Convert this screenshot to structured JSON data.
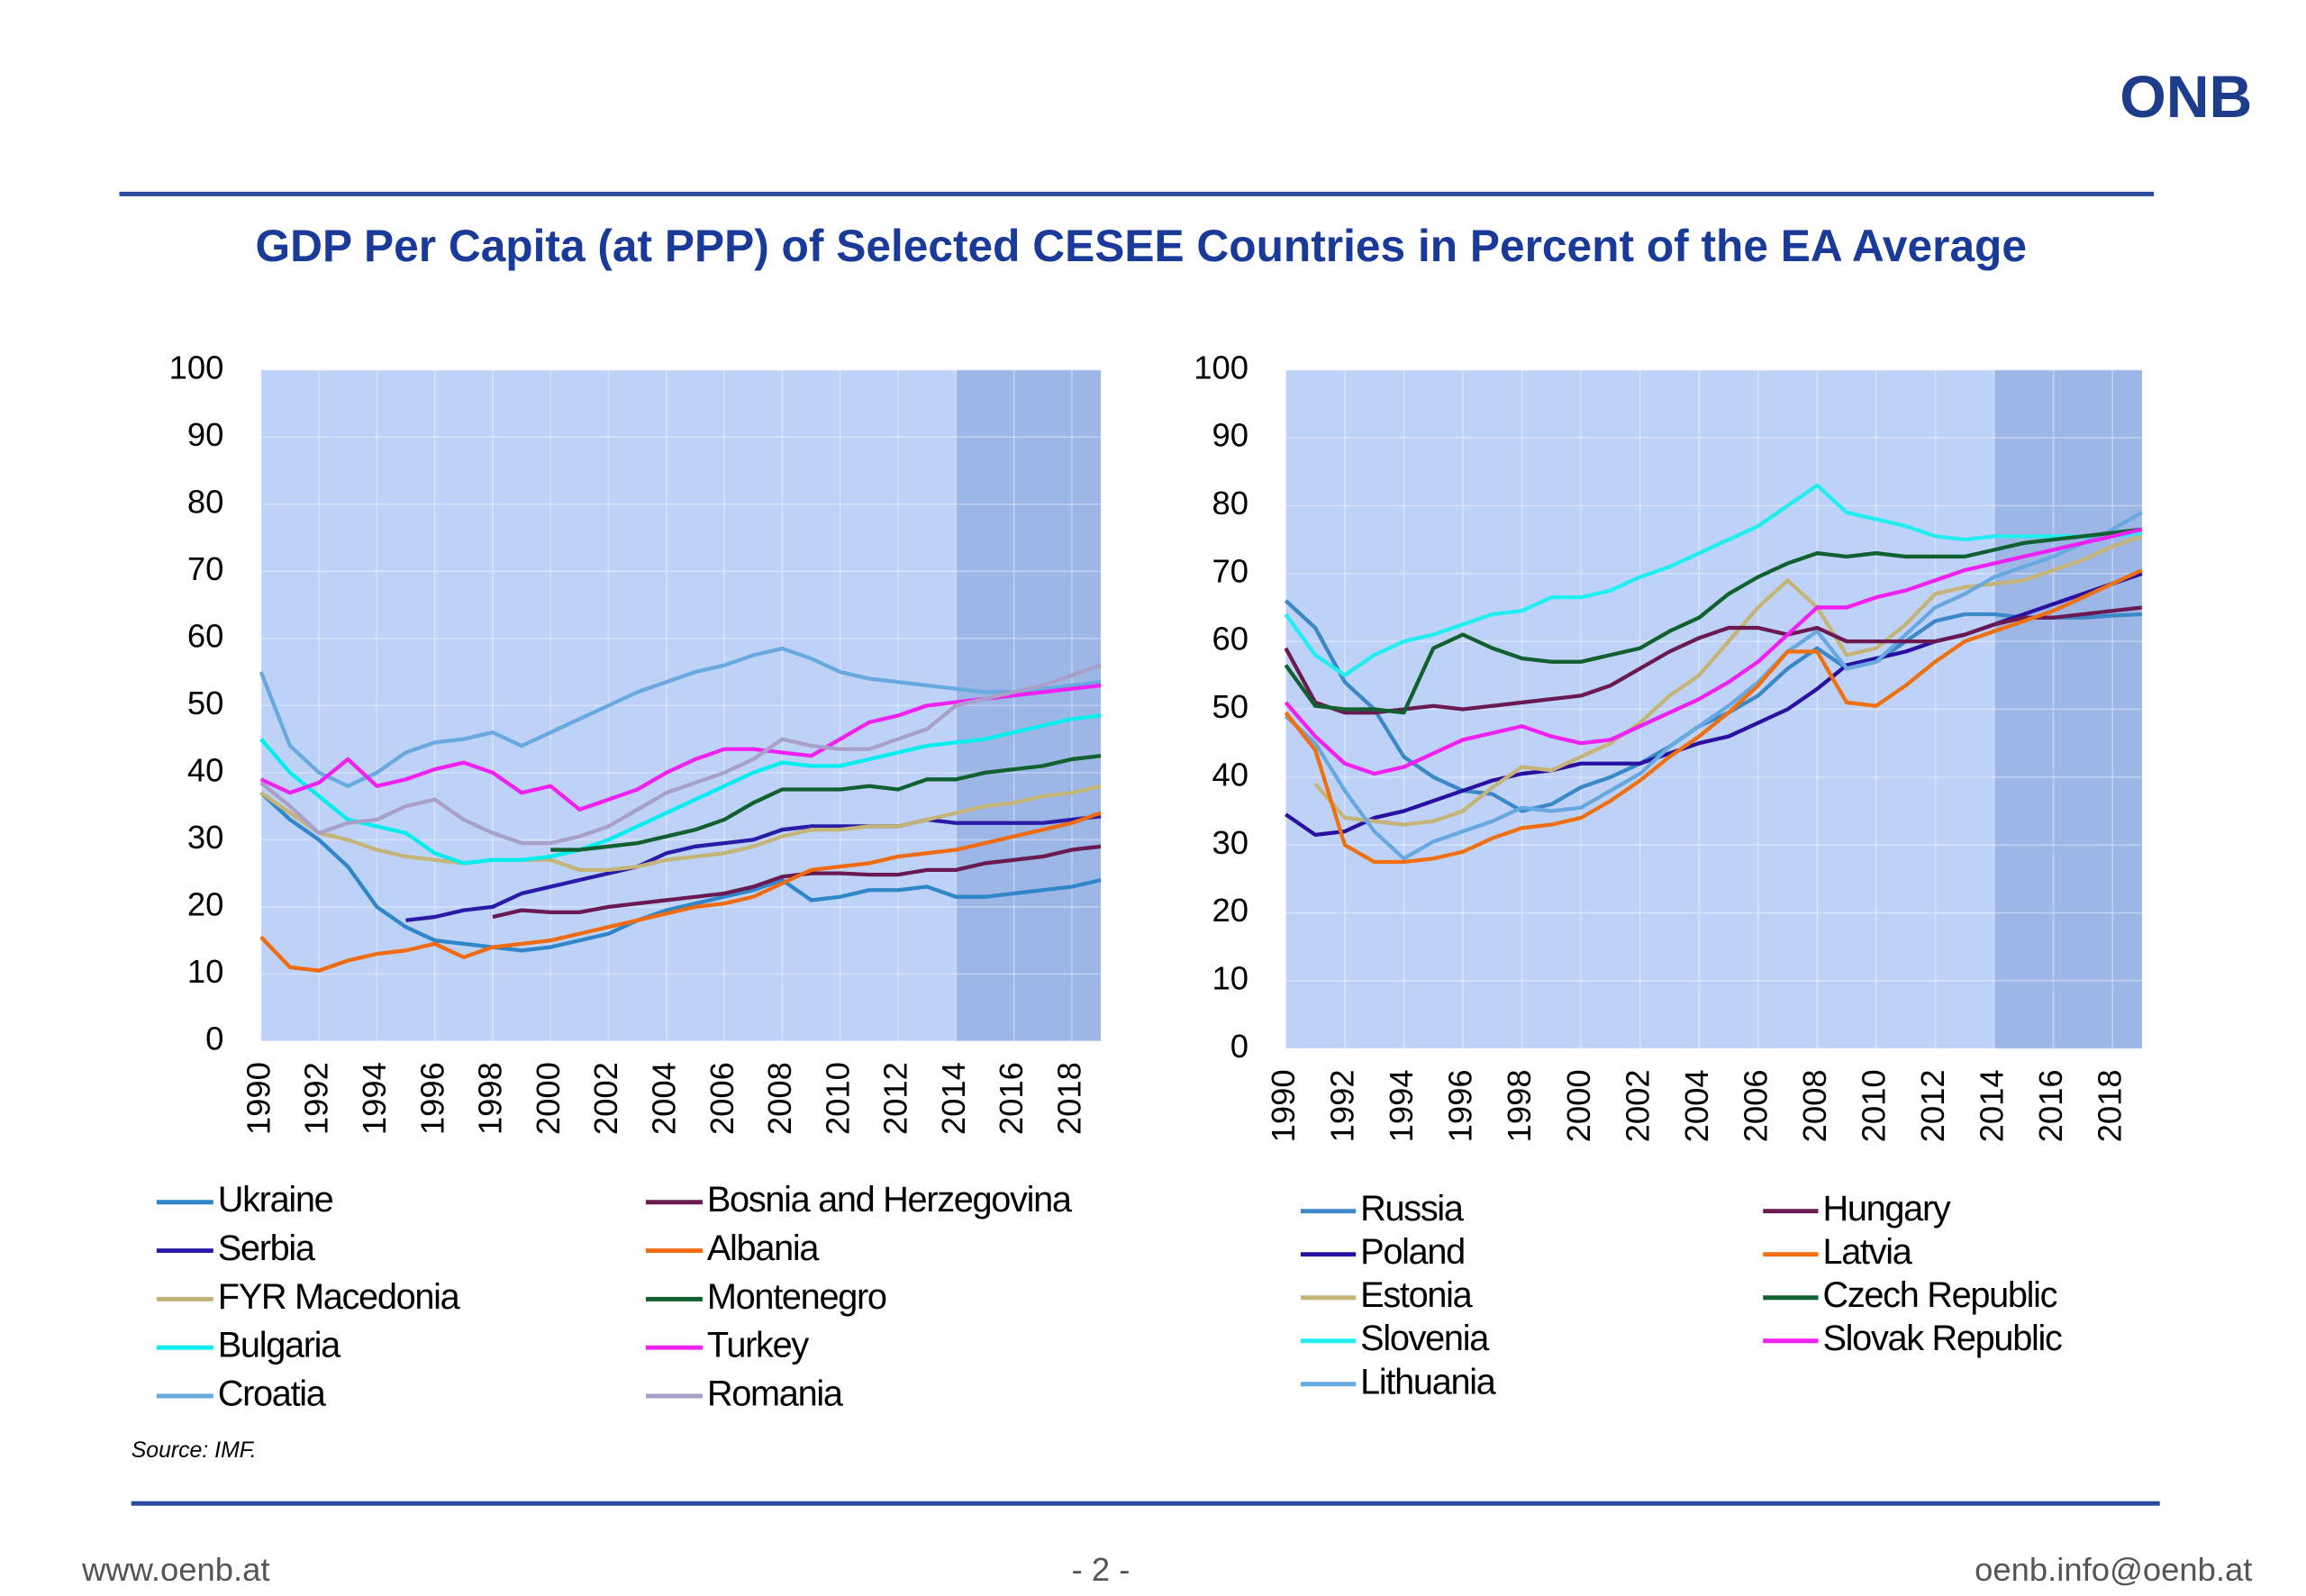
{
  "header": {
    "logo": "ONB",
    "title": "GDP Per Capita (at PPP) of Selected CESEE Countries in Percent of the EA Average"
  },
  "chart_data": [
    {
      "type": "line",
      "legend": "bottom",
      "grid": true,
      "background": "#bed2f7",
      "shading_color": "#9cb6e6",
      "forecast_shading": [
        2014,
        2019
      ],
      "xlim": [
        1990,
        2019
      ],
      "xticks": [
        1990,
        1992,
        1994,
        1996,
        1998,
        2000,
        2002,
        2004,
        2006,
        2008,
        2010,
        2012,
        2014,
        2016,
        2018
      ],
      "ylim": [
        0,
        100
      ],
      "yticks": [
        0,
        10,
        20,
        30,
        40,
        50,
        60,
        70,
        80,
        90,
        100
      ],
      "x": [
        1990,
        1991,
        1992,
        1993,
        1994,
        1995,
        1996,
        1997,
        1998,
        1999,
        2000,
        2001,
        2002,
        2003,
        2004,
        2005,
        2006,
        2007,
        2008,
        2009,
        2010,
        2011,
        2012,
        2013,
        2014,
        2015,
        2016,
        2017,
        2018,
        2019
      ],
      "series": [
        {
          "name": "Ukraine",
          "color": "#2f86c8",
          "values": [
            37,
            33,
            30,
            26,
            20,
            17,
            15,
            14.5,
            14,
            13.5,
            14,
            15,
            16,
            18,
            19.5,
            20.5,
            21.5,
            22.5,
            24,
            21,
            21.5,
            22.5,
            22.5,
            23,
            21.5,
            21.5,
            22,
            22.5,
            23,
            24
          ]
        },
        {
          "name": "Serbia",
          "color": "#2a1aa8",
          "values": [
            null,
            null,
            null,
            null,
            null,
            18,
            18.5,
            19.5,
            20,
            22,
            23,
            24,
            25,
            26,
            28,
            29,
            29.5,
            30,
            31.5,
            32,
            32,
            32,
            32,
            33,
            32.5,
            32.5,
            32.5,
            32.5,
            33,
            33.5
          ]
        },
        {
          "name": "FYR Macedonia",
          "color": "#c4b478",
          "values": [
            37,
            34,
            31,
            30,
            28.5,
            27.5,
            27,
            26.5,
            27,
            27,
            27,
            25.5,
            25.5,
            26,
            27,
            27.5,
            28,
            29,
            30.5,
            31.5,
            31.5,
            32,
            32,
            33,
            34,
            35,
            35.5,
            36.5,
            37,
            38
          ]
        },
        {
          "name": "Bulgaria",
          "color": "#00eef0",
          "values": [
            45,
            40,
            36.5,
            33,
            32,
            31,
            28,
            26.5,
            27,
            27,
            27.5,
            28.5,
            30,
            32,
            34,
            36,
            38,
            40,
            41.5,
            41,
            41,
            42,
            43,
            44,
            44.5,
            45,
            46,
            47,
            48,
            48.5
          ]
        },
        {
          "name": "Croatia",
          "color": "#68aadf",
          "values": [
            55,
            44,
            40,
            38,
            40,
            43,
            44.5,
            45,
            46,
            44,
            46,
            48,
            50,
            52,
            53.5,
            55,
            56,
            57.5,
            58.5,
            57,
            55,
            54,
            53.5,
            53,
            52.5,
            52,
            52,
            52.5,
            53,
            53.5
          ]
        },
        {
          "name": "Bosnia and Herzegovina",
          "color": "#6a1a50",
          "values": [
            null,
            null,
            null,
            null,
            null,
            null,
            null,
            null,
            18.5,
            19.5,
            19.2,
            19.2,
            20,
            20.5,
            21,
            21.5,
            22,
            23,
            24.5,
            25,
            25,
            24.8,
            24.8,
            25.5,
            25.5,
            26.5,
            27,
            27.5,
            28.5,
            29
          ]
        },
        {
          "name": "Albania",
          "color": "#f06a10",
          "values": [
            15.5,
            11,
            10.5,
            12,
            13,
            13.5,
            14.5,
            12.5,
            14,
            14.5,
            15,
            16,
            17,
            18,
            19,
            20,
            20.5,
            21.5,
            23.5,
            25.5,
            26,
            26.5,
            27.5,
            28,
            28.5,
            29.5,
            30.5,
            31.5,
            32.5,
            34
          ]
        },
        {
          "name": "Montenegro",
          "color": "#106030",
          "values": [
            null,
            null,
            null,
            null,
            null,
            null,
            null,
            null,
            null,
            null,
            28.5,
            28.5,
            29,
            29.5,
            30.5,
            31.5,
            33,
            35.5,
            37.5,
            37.5,
            37.5,
            38,
            37.5,
            39,
            39,
            40,
            40.5,
            41,
            42,
            42.5
          ]
        },
        {
          "name": "Turkey",
          "color": "#f020f0",
          "values": [
            39,
            37,
            38.5,
            42,
            38,
            39,
            40.5,
            41.5,
            40,
            37,
            38,
            34.5,
            36,
            37.5,
            40,
            42,
            43.5,
            43.5,
            43,
            42.5,
            45,
            47.5,
            48.5,
            50,
            50.5,
            51,
            51.5,
            52,
            52.5,
            53
          ]
        },
        {
          "name": "Romania",
          "color": "#a8a0c8",
          "values": [
            38.5,
            35,
            31,
            32.5,
            33,
            35,
            36,
            33,
            31,
            29.5,
            29.5,
            30.5,
            32,
            34.5,
            37,
            38.5,
            40,
            42,
            45,
            44,
            43.5,
            43.5,
            45,
            46.5,
            50,
            51,
            52,
            53,
            54.5,
            56
          ]
        }
      ]
    },
    {
      "type": "line",
      "legend": "bottom",
      "grid": true,
      "background": "#bed2f7",
      "shading_color": "#9cb6e6",
      "forecast_shading": [
        2014,
        2019
      ],
      "xlim": [
        1990,
        2019
      ],
      "xticks": [
        1990,
        1992,
        1994,
        1996,
        1998,
        2000,
        2002,
        2004,
        2006,
        2008,
        2010,
        2012,
        2014,
        2016,
        2018
      ],
      "ylim": [
        0,
        100
      ],
      "yticks": [
        0,
        10,
        20,
        30,
        40,
        50,
        60,
        70,
        80,
        90,
        100
      ],
      "x": [
        1990,
        1991,
        1992,
        1993,
        1994,
        1995,
        1996,
        1997,
        1998,
        1999,
        2000,
        2001,
        2002,
        2003,
        2004,
        2005,
        2006,
        2007,
        2008,
        2009,
        2010,
        2011,
        2012,
        2013,
        2014,
        2015,
        2016,
        2017,
        2018,
        2019
      ],
      "series": [
        {
          "name": "Russia",
          "color": "#3a88c8",
          "values": [
            66,
            62,
            54,
            50,
            43,
            40,
            38,
            37.5,
            35,
            36,
            38.5,
            40,
            42,
            44.5,
            47.5,
            49.5,
            52,
            56,
            59,
            56,
            57,
            60,
            63,
            64,
            64,
            63.5,
            63.5,
            63.5,
            63.8,
            64
          ]
        },
        {
          "name": "Poland",
          "color": "#2a10a0",
          "values": [
            34.5,
            31.5,
            32,
            34,
            35,
            36.5,
            38,
            39.5,
            40.5,
            41,
            42,
            42,
            42,
            43.5,
            45,
            46,
            48,
            50,
            53,
            56.5,
            57.5,
            58.5,
            60,
            61,
            62.5,
            64,
            65.5,
            67,
            68.5,
            70
          ]
        },
        {
          "name": "Estonia",
          "color": "#c4b478",
          "values": [
            null,
            39,
            34,
            33.5,
            33,
            33.5,
            35,
            38.5,
            41.5,
            41,
            43,
            45,
            48,
            52,
            55,
            60,
            65,
            69,
            65,
            58,
            59,
            62.5,
            67,
            68,
            68.5,
            69,
            70.5,
            72,
            74,
            75.5
          ]
        },
        {
          "name": "Slovenia",
          "color": "#20eef0",
          "values": [
            64,
            58,
            55,
            58,
            60,
            61,
            62.5,
            64,
            64.5,
            66.5,
            66.5,
            67.5,
            69.5,
            71,
            73,
            75,
            77,
            80,
            83,
            79,
            78,
            77,
            75.5,
            75,
            75.5,
            75.5,
            75.5,
            75.5,
            75.5,
            76
          ]
        },
        {
          "name": "Lithuania",
          "color": "#68a8e0",
          "values": [
            49,
            45,
            38,
            32,
            28,
            30.5,
            32,
            33.5,
            35.5,
            35,
            35.5,
            38,
            40.5,
            44.5,
            47.5,
            50.5,
            54,
            58.5,
            61.5,
            56,
            57,
            61,
            65,
            67,
            69.5,
            71,
            72.5,
            74.5,
            76.5,
            79
          ]
        },
        {
          "name": "Hungary",
          "color": "#6a1a50",
          "values": [
            59,
            51,
            49.5,
            49.5,
            50,
            50.5,
            50,
            50.5,
            51,
            51.5,
            52,
            53.5,
            56,
            58.5,
            60.5,
            62,
            62,
            61,
            62,
            60,
            60,
            60,
            60,
            61,
            62.5,
            63.5,
            63.5,
            64,
            64.5,
            65
          ]
        },
        {
          "name": "Latvia",
          "color": "#f07010",
          "values": [
            49.5,
            44,
            30,
            27.5,
            27.5,
            28,
            29,
            31,
            32.5,
            33,
            34,
            36.5,
            39.5,
            43,
            46,
            49.5,
            53.5,
            58.5,
            58.5,
            51,
            50.5,
            53.5,
            57,
            60,
            61.5,
            63,
            64.5,
            66.5,
            68.5,
            70.5
          ]
        },
        {
          "name": "Czech Republic",
          "color": "#106030",
          "values": [
            56.5,
            50.5,
            50,
            50,
            49.5,
            59,
            61,
            59,
            57.5,
            57,
            57,
            58,
            59,
            61.5,
            63.5,
            67,
            69.5,
            71.5,
            73,
            72.5,
            73,
            72.5,
            72.5,
            72.5,
            73.5,
            74.5,
            75,
            75.5,
            76,
            76.5
          ]
        },
        {
          "name": "Slovak Republic",
          "color": "#f020f0",
          "values": [
            51,
            46,
            42,
            40.5,
            41.5,
            43.5,
            45.5,
            46.5,
            47.5,
            46,
            45,
            45.5,
            47.5,
            49.5,
            51.5,
            54,
            57,
            61,
            65,
            65,
            66.5,
            67.5,
            69,
            70.5,
            71.5,
            72.5,
            73.5,
            74.5,
            75.5,
            76.5
          ]
        }
      ]
    }
  ],
  "source": "Source: IMF.",
  "footer": {
    "left": "www.oenb.at",
    "center": "- 2 -",
    "right": "oenb.info@oenb.at"
  }
}
